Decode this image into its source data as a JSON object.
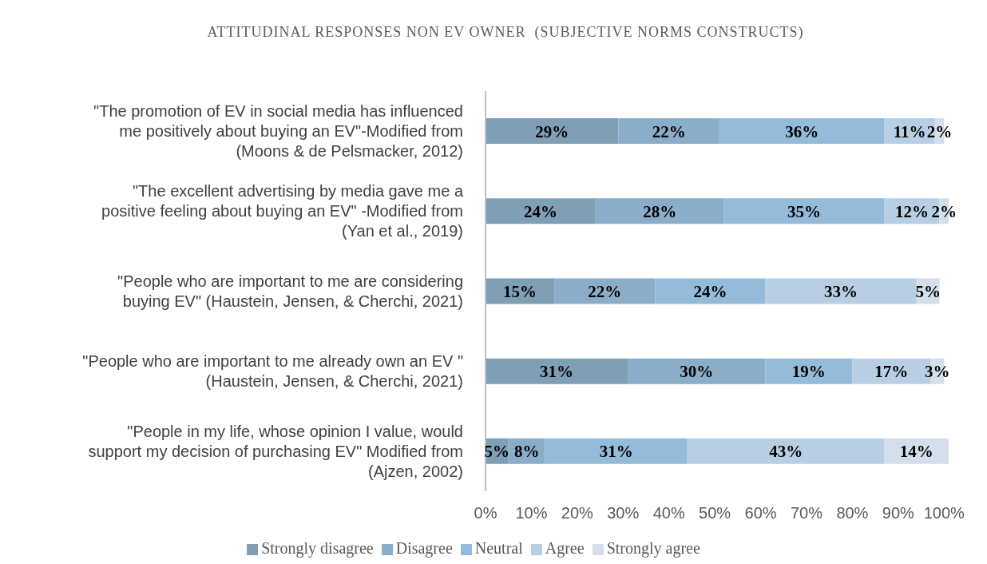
{
  "chart_data": {
    "type": "bar",
    "orientation": "horizontal",
    "stacked": true,
    "title": "ATTITUDINAL RESPONSES NON EV OWNER  (SUBJECTIVE NORMS CONSTRUCTS)",
    "categories": [
      "\"The promotion of EV in social media has influenced me positively about buying an EV\"-Modified from (Moons & de Pelsmacker, 2012)",
      "\"The excellent advertising by media gave me a positive feeling about buying an EV\" -Modified from (Yan et al., 2019)",
      "\"People who are important to me are considering buying EV\"  (Haustein, Jensen, & Cherchi, 2021)",
      "\"People who are important to me already own an EV \" (Haustein, Jensen, & Cherchi, 2021)",
      "\"People in my life, whose opinion I value, would support my decision of purchasing EV\"  Modified from (Ajzen, 2002)"
    ],
    "series": [
      {
        "name": "Strongly disagree",
        "color": "#7f9fb5",
        "values": [
          29,
          24,
          15,
          31,
          5
        ],
        "value_labels": [
          "29%",
          "24%",
          "15%",
          "31%",
          "5%"
        ]
      },
      {
        "name": "Disagree",
        "color": "#8aaec9",
        "values": [
          22,
          28,
          22,
          30,
          8
        ],
        "value_labels": [
          "22%",
          "28%",
          "22%",
          "30%",
          "8%"
        ]
      },
      {
        "name": "Neutral",
        "color": "#94bbd9",
        "values": [
          36,
          35,
          24,
          19,
          31
        ],
        "value_labels": [
          "36%",
          "35%",
          "24%",
          "19%",
          "31%"
        ]
      },
      {
        "name": "Agree",
        "color": "#b8cfe3",
        "values": [
          11,
          12,
          33,
          17,
          43
        ],
        "value_labels": [
          "11%",
          "12%",
          "33%",
          "17%",
          "43%"
        ]
      },
      {
        "name": "Strongly agree",
        "color": "#d3dfea",
        "values": [
          2,
          2,
          5,
          3,
          14
        ],
        "value_labels": [
          "2%",
          "2%",
          "5%",
          "3%",
          "14%"
        ]
      }
    ],
    "xlim": [
      0,
      101
    ],
    "xticks": [
      {
        "value": 0,
        "label": "0%"
      },
      {
        "value": 10,
        "label": "10%"
      },
      {
        "value": 20,
        "label": "20%"
      },
      {
        "value": 30,
        "label": "30%"
      },
      {
        "value": 40,
        "label": "40%"
      },
      {
        "value": 50,
        "label": "50%"
      },
      {
        "value": 60,
        "label": "60%"
      },
      {
        "value": 70,
        "label": "70%"
      },
      {
        "value": 80,
        "label": "80%"
      },
      {
        "value": 90,
        "label": "90%"
      },
      {
        "value": 100,
        "label": "100%"
      }
    ],
    "legend": "bottom"
  }
}
